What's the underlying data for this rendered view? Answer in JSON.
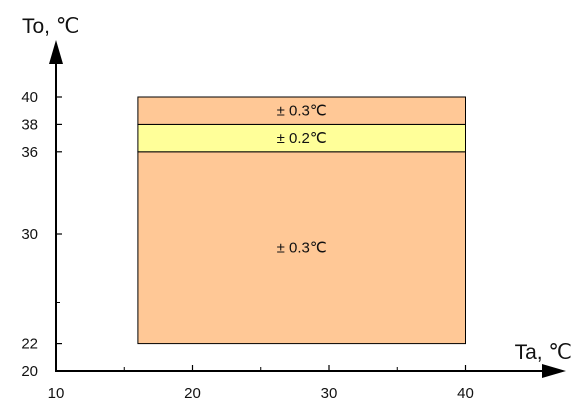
{
  "chart_data": {
    "type": "area",
    "xlabel": "Ta, ℃",
    "ylabel": "To, ℃",
    "x_ticks": [
      10,
      20,
      30,
      40
    ],
    "x_minor_ticks": [
      15,
      25,
      35
    ],
    "y_ticks": [
      20,
      22,
      30,
      36,
      38,
      40
    ],
    "y_minor_ticks": [
      25
    ],
    "xlim": [
      10,
      46
    ],
    "ylim": [
      20,
      47
    ],
    "grid": false,
    "regions": [
      {
        "x": [
          16,
          40
        ],
        "y": [
          22,
          36
        ],
        "label": "± 0.3℃",
        "color": "#FFC896"
      },
      {
        "x": [
          16,
          40
        ],
        "y": [
          36,
          38
        ],
        "label": "± 0.2℃",
        "color": "#FFFF99"
      },
      {
        "x": [
          16,
          40
        ],
        "y": [
          38,
          40
        ],
        "label": "± 0.3℃",
        "color": "#FFC896"
      }
    ]
  }
}
